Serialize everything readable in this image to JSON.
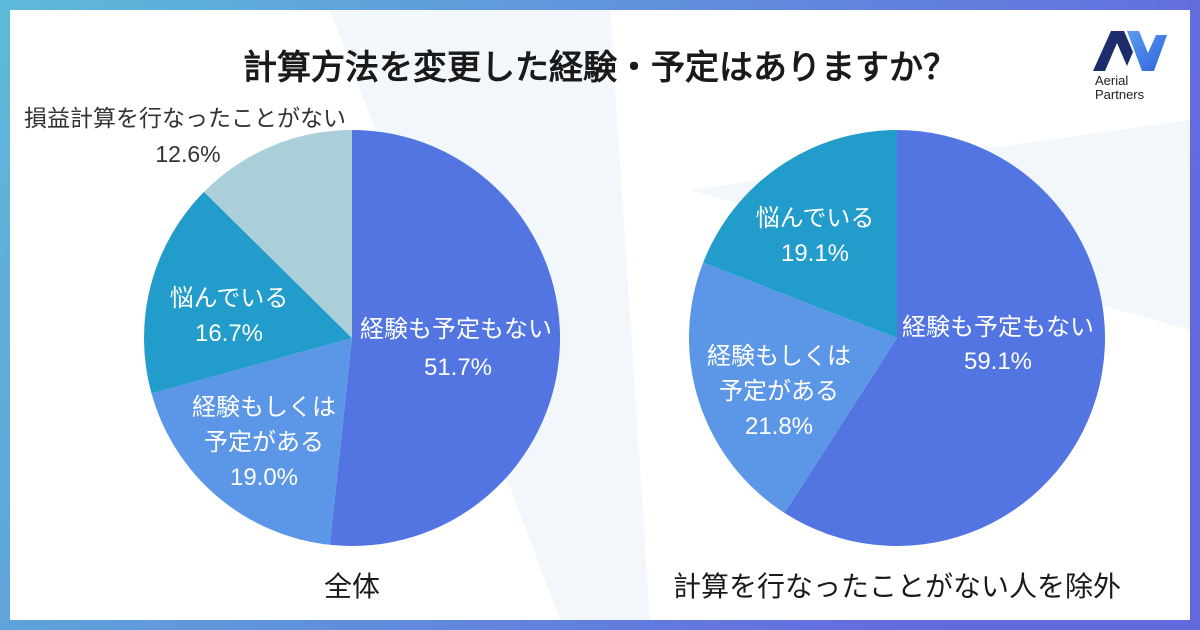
{
  "title": "計算方法を変更した経験・予定はありますか？",
  "logo": {
    "line1": "Aerial",
    "line2": "Partners"
  },
  "colors": {
    "border_start": "#5DBAD9",
    "border_end": "#6468DF",
    "logo_navy": "#1D2C6B",
    "logo_light": "#5A9CF0",
    "logo_mid": "#2F64DC"
  },
  "chart_data": [
    {
      "type": "pie",
      "title": "全体",
      "slices": [
        {
          "label": [
            "経験も予定もない"
          ],
          "value": 51.7,
          "value_label": "51.7%",
          "color": "#5275E1"
        },
        {
          "label": [
            "経験もしくは",
            "予定がある"
          ],
          "value": 19.0,
          "value_label": "19.0%",
          "color": "#5B97E6"
        },
        {
          "label": [
            "悩んでいる"
          ],
          "value": 16.7,
          "value_label": "16.7%",
          "color": "#219CCB"
        },
        {
          "label": [
            "損益計算を行なったことがない"
          ],
          "value": 12.6,
          "value_label": "12.6%",
          "color": "#AACFD8"
        }
      ]
    },
    {
      "type": "pie",
      "title": "計算を行なったことがない人を除外",
      "slices": [
        {
          "label": [
            "経験も予定もない"
          ],
          "value": 59.1,
          "value_label": "59.1%",
          "color": "#5275E1"
        },
        {
          "label": [
            "経験もしくは",
            "予定がある"
          ],
          "value": 21.8,
          "value_label": "21.8%",
          "color": "#5B97E6"
        },
        {
          "label": [
            "悩んでいる"
          ],
          "value": 19.1,
          "value_label": "19.1%",
          "color": "#219CCB"
        }
      ]
    }
  ]
}
